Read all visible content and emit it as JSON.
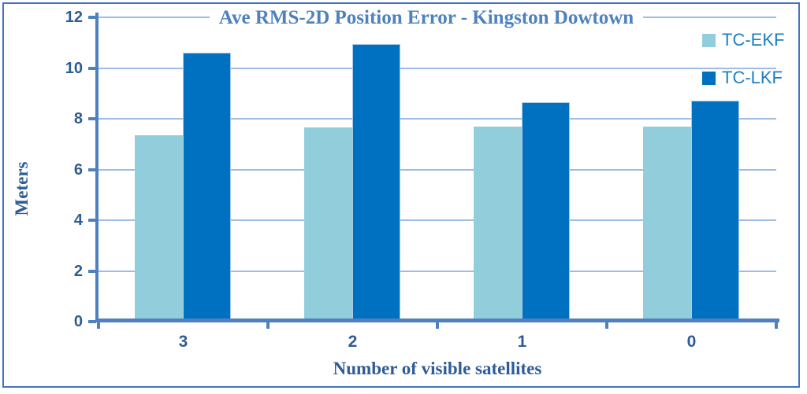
{
  "chart_data": {
    "type": "bar",
    "title": "Ave RMS-2D Position Error - Kingston Dowtown",
    "xlabel": "Number of visible satellites",
    "ylabel": "Meters",
    "categories": [
      "3",
      "2",
      "1",
      "0"
    ],
    "series": [
      {
        "name": "TC-EKF",
        "color": "#92CDDC",
        "values": [
          7.35,
          7.65,
          7.7,
          7.7
        ]
      },
      {
        "name": "TC-LKF",
        "color": "#0070C0",
        "values": [
          10.6,
          10.95,
          8.65,
          8.7
        ]
      }
    ],
    "ylim": [
      0,
      12
    ],
    "y_ticks": [
      12,
      10,
      8,
      6,
      4,
      2,
      0
    ],
    "grid": true,
    "legend_position": "top-right"
  },
  "colors": {
    "figure_border": "#4472C4",
    "axis": "#4E81BD",
    "gridline": "#9FBCE4",
    "tick_label": "#2E5C94",
    "title": "#4E81BD",
    "axis_title": "#2E5C94",
    "legend_text": "#1D7DC4",
    "series_light": "#92CDDC",
    "series_dark": "#0070C0"
  }
}
